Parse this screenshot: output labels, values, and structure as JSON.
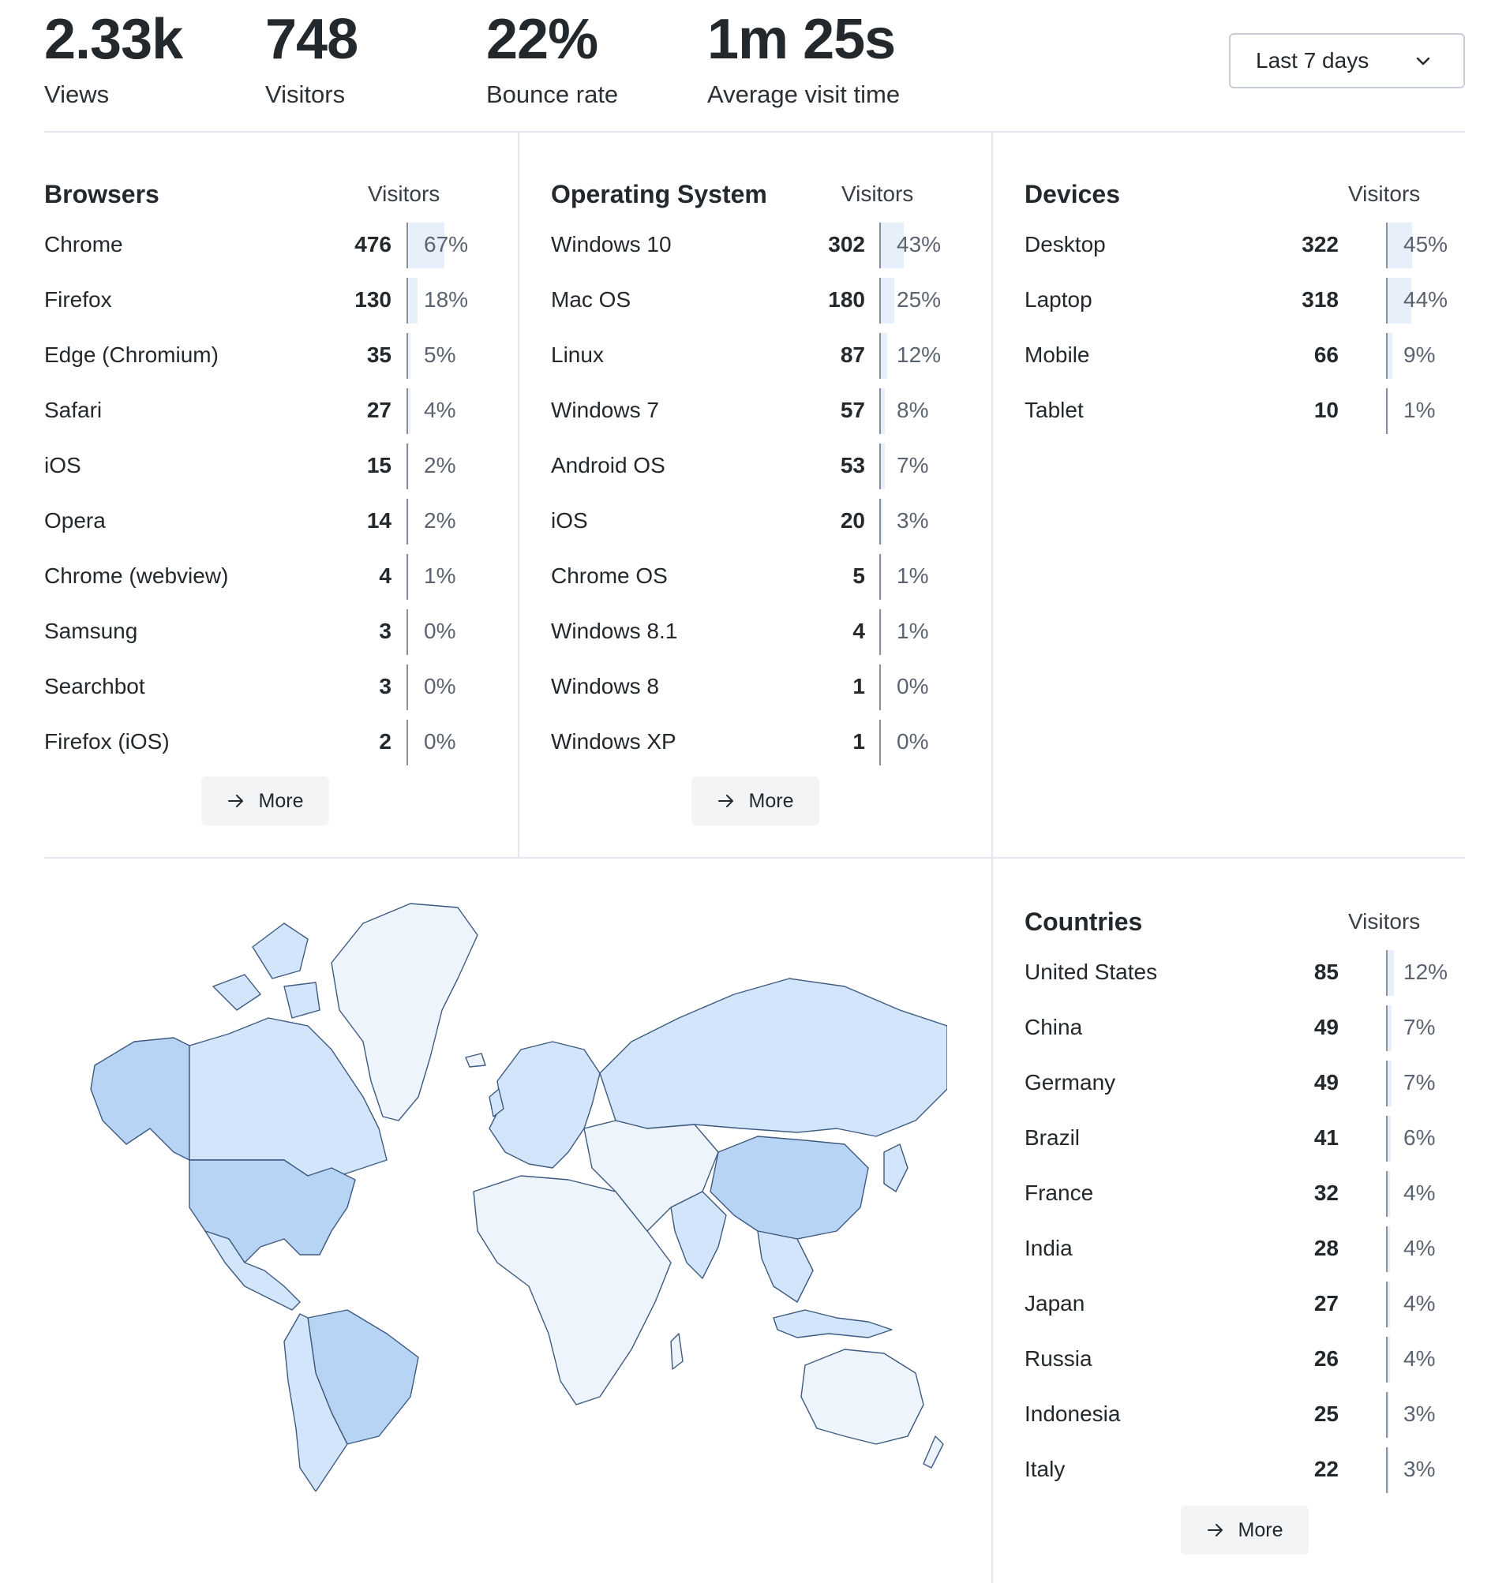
{
  "stats": [
    {
      "value": "2.33k",
      "label": "Views"
    },
    {
      "value": "748",
      "label": "Visitors"
    },
    {
      "value": "22%",
      "label": "Bounce rate"
    },
    {
      "value": "1m 25s",
      "label": "Average visit time"
    }
  ],
  "range_select": {
    "value": "Last 7 days",
    "icon": "chevron-down-icon"
  },
  "colors": {
    "bar_fill": "#e6effa",
    "map_high": "#b7d4f5",
    "map_mid": "#d3e5fa",
    "map_low": "#eef4fc",
    "map_stroke": "#3d5a80"
  },
  "browsers": {
    "title": "Browsers",
    "column": "Visitors",
    "rows": [
      {
        "label": "Chrome",
        "count": "476",
        "pct": "67%",
        "share": 0.67
      },
      {
        "label": "Firefox",
        "count": "130",
        "pct": "18%",
        "share": 0.18
      },
      {
        "label": "Edge (Chromium)",
        "count": "35",
        "pct": "5%",
        "share": 0.05
      },
      {
        "label": "Safari",
        "count": "27",
        "pct": "4%",
        "share": 0.04
      },
      {
        "label": "iOS",
        "count": "15",
        "pct": "2%",
        "share": 0.02
      },
      {
        "label": "Opera",
        "count": "14",
        "pct": "2%",
        "share": 0.02
      },
      {
        "label": "Chrome (webview)",
        "count": "4",
        "pct": "1%",
        "share": 0.01
      },
      {
        "label": "Samsung",
        "count": "3",
        "pct": "0%",
        "share": 0.0
      },
      {
        "label": "Searchbot",
        "count": "3",
        "pct": "0%",
        "share": 0.0
      },
      {
        "label": "Firefox (iOS)",
        "count": "2",
        "pct": "0%",
        "share": 0.0
      }
    ],
    "more": "More"
  },
  "os": {
    "title": "Operating System",
    "column": "Visitors",
    "rows": [
      {
        "label": "Windows 10",
        "count": "302",
        "pct": "43%",
        "share": 0.43
      },
      {
        "label": "Mac OS",
        "count": "180",
        "pct": "25%",
        "share": 0.25
      },
      {
        "label": "Linux",
        "count": "87",
        "pct": "12%",
        "share": 0.12
      },
      {
        "label": "Windows 7",
        "count": "57",
        "pct": "8%",
        "share": 0.08
      },
      {
        "label": "Android OS",
        "count": "53",
        "pct": "7%",
        "share": 0.07
      },
      {
        "label": "iOS",
        "count": "20",
        "pct": "3%",
        "share": 0.03
      },
      {
        "label": "Chrome OS",
        "count": "5",
        "pct": "1%",
        "share": 0.01
      },
      {
        "label": "Windows 8.1",
        "count": "4",
        "pct": "1%",
        "share": 0.01
      },
      {
        "label": "Windows 8",
        "count": "1",
        "pct": "0%",
        "share": 0.0
      },
      {
        "label": "Windows XP",
        "count": "1",
        "pct": "0%",
        "share": 0.0
      }
    ],
    "more": "More"
  },
  "devices": {
    "title": "Devices",
    "column": "Visitors",
    "rows": [
      {
        "label": "Desktop",
        "count": "322",
        "pct": "45%",
        "share": 0.45
      },
      {
        "label": "Laptop",
        "count": "318",
        "pct": "44%",
        "share": 0.44
      },
      {
        "label": "Mobile",
        "count": "66",
        "pct": "9%",
        "share": 0.09
      },
      {
        "label": "Tablet",
        "count": "10",
        "pct": "1%",
        "share": 0.01
      }
    ]
  },
  "countries": {
    "title": "Countries",
    "column": "Visitors",
    "rows": [
      {
        "label": "United States",
        "count": "85",
        "pct": "12%",
        "share": 0.12
      },
      {
        "label": "China",
        "count": "49",
        "pct": "7%",
        "share": 0.07
      },
      {
        "label": "Germany",
        "count": "49",
        "pct": "7%",
        "share": 0.07
      },
      {
        "label": "Brazil",
        "count": "41",
        "pct": "6%",
        "share": 0.06
      },
      {
        "label": "France",
        "count": "32",
        "pct": "4%",
        "share": 0.04
      },
      {
        "label": "India",
        "count": "28",
        "pct": "4%",
        "share": 0.04
      },
      {
        "label": "Japan",
        "count": "27",
        "pct": "4%",
        "share": 0.04
      },
      {
        "label": "Russia",
        "count": "26",
        "pct": "4%",
        "share": 0.04
      },
      {
        "label": "Indonesia",
        "count": "25",
        "pct": "3%",
        "share": 0.03
      },
      {
        "label": "Italy",
        "count": "22",
        "pct": "3%",
        "share": 0.03
      }
    ],
    "more": "More"
  }
}
